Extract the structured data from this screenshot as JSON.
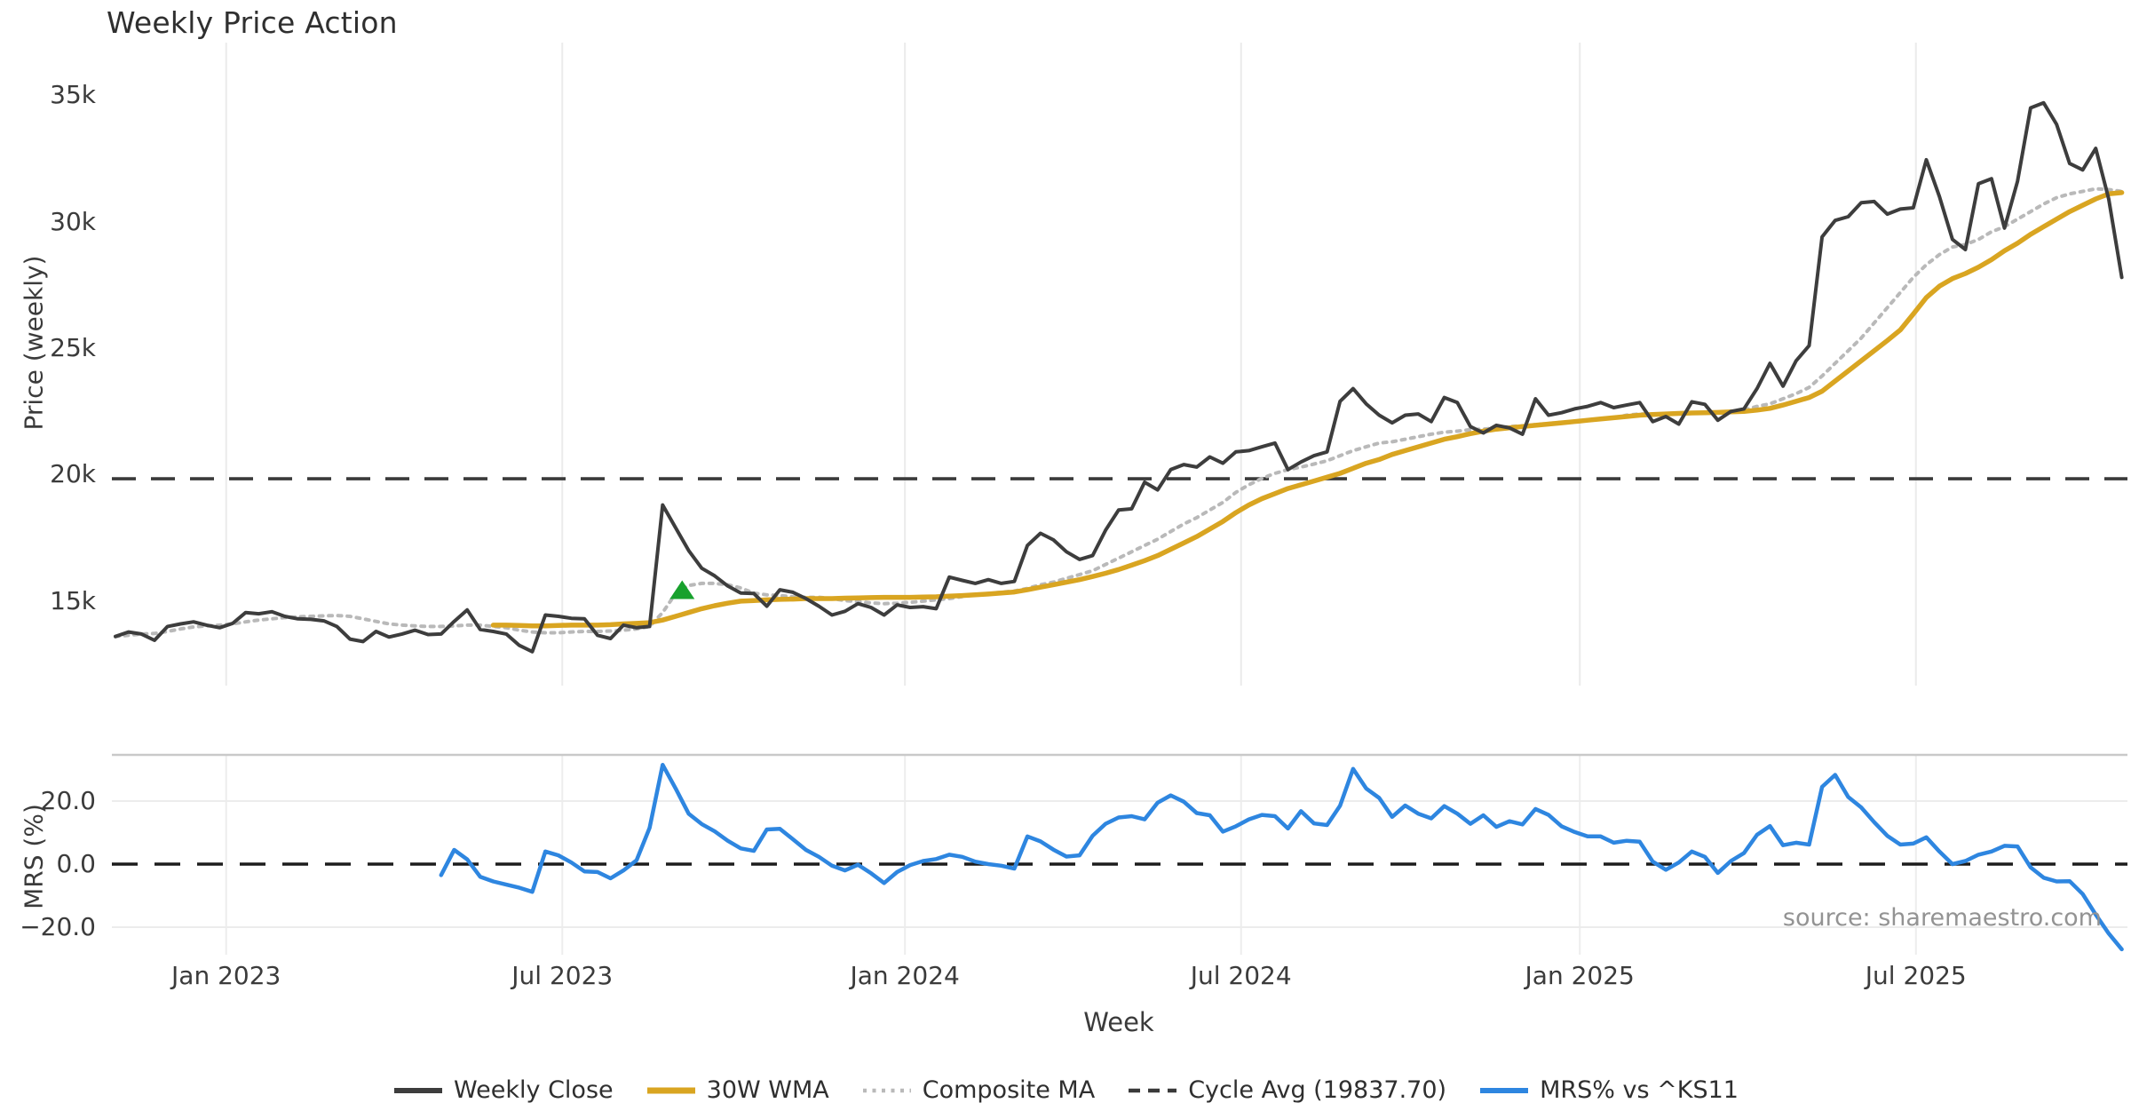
{
  "title": "Weekly Price Action",
  "source_note": "source: sharemaestro.com",
  "axes": {
    "price": {
      "label": "Price (weekly)",
      "ticks": [
        {
          "value": 35,
          "label": "35k"
        },
        {
          "value": 30,
          "label": "30k"
        },
        {
          "value": 25,
          "label": "25k"
        },
        {
          "value": 20,
          "label": "20k"
        },
        {
          "value": 15,
          "label": "15k"
        }
      ]
    },
    "mrs": {
      "label": "MRS (%)",
      "ticks": [
        {
          "value": 20,
          "label": "20.0"
        },
        {
          "value": 0,
          "label": "0.0"
        },
        {
          "value": -20,
          "label": "−20.0"
        }
      ]
    },
    "x": {
      "label": "Week",
      "ticks": [
        {
          "week": 8.5,
          "label": "Jan 2023"
        },
        {
          "week": 34.3,
          "label": "Jul 2023"
        },
        {
          "week": 60.6,
          "label": "Jan 2024"
        },
        {
          "week": 86.4,
          "label": "Jul 2024"
        },
        {
          "week": 112.4,
          "label": "Jan 2025"
        },
        {
          "week": 138.2,
          "label": "Jul 2025"
        }
      ]
    }
  },
  "legend": [
    {
      "label": "Weekly Close",
      "color": "#3d3d3d",
      "style": "solid",
      "width": 6
    },
    {
      "label": "30W WMA",
      "color": "#d9a521",
      "style": "solid",
      "width": 7
    },
    {
      "label": "Composite MA",
      "color": "#b9b9b9",
      "style": "dotted",
      "width": 4.5
    },
    {
      "label": "Cycle Avg (19837.70)",
      "color": "#3a3a3a",
      "style": "dashed",
      "width": 4.5
    },
    {
      "label": "MRS% vs ^KS11",
      "color": "#2e86e0",
      "style": "solid",
      "width": 6
    }
  ],
  "chart_data": [
    {
      "type": "line",
      "panel": "price",
      "title": "Weekly Price Action",
      "ylabel": "Price (weekly)",
      "y_unit": "thousands",
      "ylim": [
        11.66,
        37.08
      ],
      "x_unit": "week_index",
      "x_range": [
        0,
        154
      ],
      "grid": "vertical-only",
      "reference_line": {
        "name": "Cycle Avg",
        "value": 19.8377,
        "display": "19837.70",
        "color": "#3a3a3a",
        "style": "dashed"
      },
      "marker": {
        "symbol": "triangle-up",
        "color": "#18a12d",
        "week": 43.5,
        "value": 15.4
      },
      "series": [
        {
          "name": "Weekly Close",
          "color": "#3d3d3d",
          "style": "solid",
          "values": [
            13.6,
            13.78,
            13.7,
            13.45,
            14.0,
            14.1,
            14.18,
            14.05,
            13.95,
            14.12,
            14.55,
            14.5,
            14.58,
            14.4,
            14.3,
            14.28,
            14.22,
            14.0,
            13.5,
            13.4,
            13.8,
            13.58,
            13.7,
            13.85,
            13.68,
            13.7,
            14.2,
            14.65,
            13.88,
            13.8,
            13.7,
            13.25,
            13.0,
            14.45,
            14.4,
            14.32,
            14.3,
            13.65,
            13.52,
            14.05,
            13.95,
            14.0,
            18.8,
            17.9,
            17.0,
            16.3,
            16.0,
            15.6,
            15.32,
            15.3,
            14.8,
            15.45,
            15.35,
            15.1,
            14.8,
            14.45,
            14.6,
            14.9,
            14.75,
            14.45,
            14.85,
            14.75,
            14.78,
            14.7,
            15.95,
            15.82,
            15.7,
            15.85,
            15.7,
            15.78,
            17.2,
            17.68,
            17.42,
            16.95,
            16.65,
            16.8,
            17.8,
            18.6,
            18.65,
            19.7,
            19.4,
            20.2,
            20.4,
            20.3,
            20.7,
            20.45,
            20.9,
            20.95,
            21.1,
            21.25,
            20.2,
            20.5,
            20.75,
            20.9,
            22.9,
            23.4,
            22.8,
            22.35,
            22.05,
            22.35,
            22.4,
            22.1,
            23.05,
            22.85,
            21.9,
            21.65,
            21.95,
            21.85,
            21.6,
            23.0,
            22.35,
            22.45,
            22.6,
            22.7,
            22.85,
            22.65,
            22.75,
            22.85,
            22.1,
            22.3,
            22.0,
            22.88,
            22.78,
            22.15,
            22.5,
            22.6,
            23.4,
            24.4,
            23.5,
            24.5,
            25.1,
            29.4,
            30.05,
            30.2,
            30.75,
            30.8,
            30.3,
            30.5,
            30.55,
            32.45,
            31.0,
            29.3,
            28.9,
            31.5,
            31.7,
            29.75,
            31.6,
            34.5,
            34.7,
            33.85,
            32.3,
            32.05,
            32.9,
            30.9,
            27.8
          ]
        },
        {
          "name": "30W WMA",
          "color": "#d9a521",
          "style": "solid",
          "values": [
            null,
            null,
            null,
            null,
            null,
            null,
            null,
            null,
            null,
            null,
            null,
            null,
            null,
            null,
            null,
            null,
            null,
            null,
            null,
            null,
            null,
            null,
            null,
            null,
            null,
            null,
            null,
            null,
            null,
            14.05,
            14.05,
            14.04,
            14.02,
            14.02,
            14.04,
            14.05,
            14.05,
            14.05,
            14.07,
            14.1,
            14.12,
            14.15,
            14.25,
            14.4,
            14.55,
            14.7,
            14.82,
            14.92,
            15.0,
            15.02,
            15.05,
            15.07,
            15.08,
            15.1,
            15.1,
            15.1,
            15.12,
            15.13,
            15.14,
            15.15,
            15.15,
            15.15,
            15.16,
            15.17,
            15.2,
            15.22,
            15.25,
            15.28,
            15.32,
            15.36,
            15.45,
            15.55,
            15.65,
            15.75,
            15.85,
            15.97,
            16.1,
            16.25,
            16.42,
            16.6,
            16.8,
            17.05,
            17.3,
            17.55,
            17.85,
            18.15,
            18.5,
            18.8,
            19.05,
            19.25,
            19.45,
            19.6,
            19.75,
            19.9,
            20.05,
            20.25,
            20.45,
            20.6,
            20.8,
            20.95,
            21.1,
            21.25,
            21.4,
            21.5,
            21.62,
            21.72,
            21.8,
            21.85,
            21.9,
            21.95,
            22.0,
            22.05,
            22.1,
            22.15,
            22.2,
            22.25,
            22.3,
            22.35,
            22.38,
            22.4,
            22.42,
            22.44,
            22.45,
            22.46,
            22.48,
            22.5,
            22.55,
            22.62,
            22.75,
            22.9,
            23.05,
            23.3,
            23.7,
            24.1,
            24.5,
            24.9,
            25.3,
            25.72,
            26.35,
            27.0,
            27.45,
            27.75,
            27.95,
            28.2,
            28.5,
            28.85,
            29.15,
            29.5,
            29.8,
            30.1,
            30.4,
            30.65,
            30.9,
            31.1,
            31.15
          ]
        },
        {
          "name": "Composite MA",
          "color": "#b9b9b9",
          "style": "dotted",
          "values": [
            13.6,
            13.65,
            13.7,
            13.72,
            13.8,
            13.9,
            13.98,
            14.02,
            14.05,
            14.1,
            14.18,
            14.25,
            14.3,
            14.35,
            14.38,
            14.4,
            14.42,
            14.43,
            14.4,
            14.3,
            14.2,
            14.1,
            14.05,
            14.02,
            14.0,
            14.0,
            14.02,
            14.05,
            14.05,
            14.0,
            13.95,
            13.85,
            13.78,
            13.75,
            13.75,
            13.78,
            13.8,
            13.8,
            13.82,
            13.85,
            13.9,
            14.0,
            14.55,
            15.3,
            15.62,
            15.7,
            15.7,
            15.65,
            15.52,
            15.32,
            15.25,
            15.22,
            15.17,
            15.15,
            15.15,
            15.1,
            15.02,
            14.98,
            14.93,
            14.9,
            14.92,
            14.95,
            15.0,
            15.05,
            15.1,
            15.18,
            15.25,
            15.3,
            15.35,
            15.4,
            15.5,
            15.65,
            15.75,
            15.9,
            16.05,
            16.2,
            16.45,
            16.7,
            16.95,
            17.2,
            17.45,
            17.75,
            18.05,
            18.3,
            18.6,
            18.9,
            19.3,
            19.6,
            19.85,
            20.05,
            20.2,
            20.3,
            20.42,
            20.55,
            20.75,
            20.95,
            21.1,
            21.25,
            21.3,
            21.4,
            21.5,
            21.6,
            21.68,
            21.72,
            21.78,
            21.8,
            21.85,
            21.9,
            21.93,
            21.98,
            22.02,
            22.07,
            22.1,
            22.15,
            22.2,
            22.25,
            22.35,
            22.4,
            22.4,
            22.4,
            22.4,
            22.42,
            22.45,
            22.45,
            22.5,
            22.55,
            22.7,
            22.8,
            23.0,
            23.2,
            23.45,
            23.9,
            24.4,
            24.9,
            25.4,
            26.0,
            26.6,
            27.2,
            27.8,
            28.3,
            28.7,
            29.0,
            29.1,
            29.3,
            29.6,
            29.8,
            30.1,
            30.4,
            30.7,
            30.95,
            31.1,
            31.2,
            31.3,
            31.27,
            31.2
          ]
        }
      ]
    },
    {
      "type": "line",
      "panel": "mrs",
      "ylabel": "MRS (%)",
      "ylim": [
        -28.73,
        34.65
      ],
      "x_unit": "week_index",
      "x_range": [
        0,
        154
      ],
      "reference_line": {
        "name": "zero",
        "value": 0,
        "color": "#1c1c1c",
        "style": "dashed"
      },
      "series": [
        {
          "name": "MRS% vs ^KS11",
          "color": "#2e86e0",
          "style": "solid",
          "values": [
            null,
            null,
            null,
            null,
            null,
            null,
            null,
            null,
            null,
            null,
            null,
            null,
            null,
            null,
            null,
            null,
            null,
            null,
            null,
            null,
            null,
            null,
            null,
            null,
            null,
            -3.5,
            4.5,
            1.5,
            -4.0,
            -5.5,
            -6.5,
            -7.5,
            -8.8,
            4.0,
            2.8,
            0.5,
            -2.3,
            -2.5,
            -4.5,
            -2.0,
            1.2,
            11.5,
            31.5,
            24.0,
            16.0,
            12.7,
            10.4,
            7.4,
            5.0,
            4.2,
            11.0,
            11.2,
            7.9,
            4.5,
            2.3,
            -0.5,
            -2.0,
            -0.2,
            -2.9,
            -6.0,
            -2.5,
            -0.3,
            1.0,
            1.6,
            3.0,
            2.3,
            0.8,
            0.0,
            -0.5,
            -1.4,
            8.8,
            7.2,
            4.6,
            2.4,
            2.8,
            9.0,
            12.8,
            14.8,
            15.2,
            14.2,
            19.5,
            21.8,
            19.8,
            16.2,
            15.5,
            10.3,
            12.0,
            14.2,
            15.6,
            15.2,
            11.3,
            16.8,
            12.9,
            12.4,
            18.5,
            30.2,
            24.0,
            21.0,
            15.0,
            18.6,
            16.0,
            14.5,
            18.4,
            16.0,
            12.8,
            15.5,
            11.8,
            13.6,
            12.6,
            17.5,
            15.6,
            12.0,
            10.2,
            8.8,
            8.8,
            6.8,
            7.4,
            7.1,
            0.8,
            -1.8,
            0.5,
            4.0,
            2.3,
            -2.8,
            1.0,
            3.5,
            9.3,
            12.1,
            6.0,
            6.8,
            6.2,
            24.5,
            28.3,
            21.3,
            18.0,
            13.3,
            9.0,
            6.2,
            6.5,
            8.5,
            4.0,
            0.0,
            1.0,
            3.0,
            4.0,
            5.8,
            5.6,
            -1.0,
            -4.3,
            -5.5,
            -5.4,
            -9.5,
            -16.0,
            -22.0,
            -27.0
          ]
        }
      ]
    }
  ]
}
